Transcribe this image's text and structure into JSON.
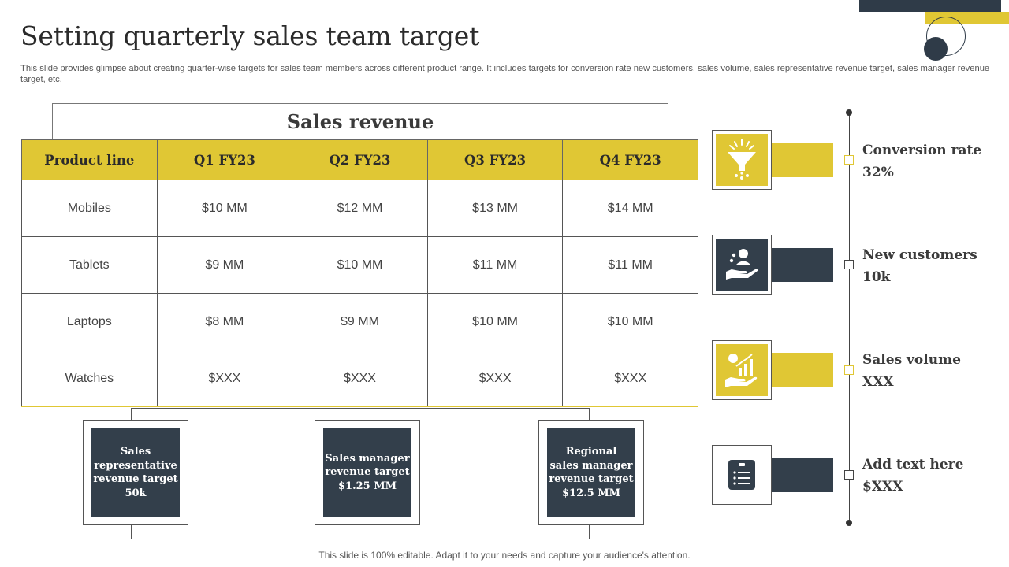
{
  "slide": {
    "title": "Setting quarterly sales team target",
    "subtitle": "This slide provides glimpse about creating quarter-wise targets for sales team members across different product range. It includes targets for conversion rate new customers, sales volume, sales representative revenue target, sales manager revenue target, etc.",
    "footer": "This slide is 100% editable. Adapt it to your needs and capture your audience's attention."
  },
  "table": {
    "heading": "Sales revenue",
    "headers": [
      "Product line",
      "Q1 FY23",
      "Q2 FY23",
      "Q3 FY23",
      "Q4 FY23"
    ],
    "rows": [
      [
        "Mobiles",
        "$10 MM",
        "$12 MM",
        "$13 MM",
        "$14 MM"
      ],
      [
        "Tablets",
        "$9 MM",
        "$10 MM",
        "$11 MM",
        "$11 MM"
      ],
      [
        "Laptops",
        "$8 MM",
        "$9 MM",
        "$10 MM",
        "$10 MM"
      ],
      [
        "Watches",
        "$XXX",
        "$XXX",
        "$XXX",
        "$XXX"
      ]
    ]
  },
  "targets": [
    {
      "lines": [
        "Sales",
        "representative",
        "revenue target",
        "50k"
      ]
    },
    {
      "lines": [
        "Sales manager",
        "revenue target",
        "$1.25 MM"
      ]
    },
    {
      "lines": [
        "Regional",
        "sales manager",
        "revenue target",
        "$12.5 MM"
      ]
    }
  ],
  "kpis": [
    {
      "label": "Conversion rate",
      "value": "32%",
      "icon": "funnel-icon",
      "color": "#e0c734"
    },
    {
      "label": "New customers",
      "value": "10k",
      "icon": "customer-hand-icon",
      "color": "#333f4b"
    },
    {
      "label": "Sales volume",
      "value": "XXX",
      "icon": "sales-growth-icon",
      "color": "#e0c734"
    },
    {
      "label": "Add text here",
      "value": "$XXX",
      "icon": "document-list-icon",
      "color": "#333f4b"
    }
  ],
  "colors": {
    "accent": "#e0c734",
    "dark": "#333f4b"
  }
}
